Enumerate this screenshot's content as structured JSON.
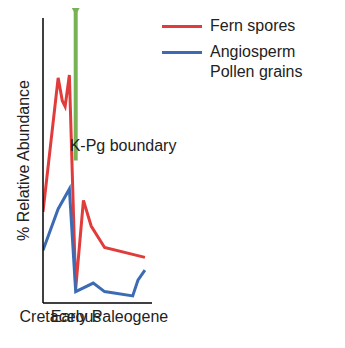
{
  "chart_data": {
    "type": "line",
    "y_label": "% Relative Abundance",
    "xlim": [
      0,
      100
    ],
    "ylim": [
      0,
      100
    ],
    "xticks": [
      {
        "value": 16,
        "label": "Cretaceous"
      },
      {
        "value": 61,
        "label": "Early Paleogene"
      }
    ],
    "yticks": [],
    "tick_labels": "x",
    "grid": false,
    "legend": "upper right",
    "annotations": [
      {
        "text": "K-Pg boundary",
        "x": 30,
        "color": "#77b255"
      }
    ],
    "series": [
      {
        "name": "Fern spores",
        "color": "#e03c3c",
        "x": [
          0,
          13.9,
          17.7,
          20.3,
          24.2,
          30,
          37.1,
          44.2,
          56.5,
          93.5
        ],
        "values": [
          32,
          79,
          71,
          69,
          80,
          5,
          36,
          27,
          19.5,
          16
        ]
      },
      {
        "name": "Angiosperm Pollen grains",
        "color": "#3c6bb4",
        "x": [
          0,
          13.9,
          24.2,
          30,
          46.1,
          56.5,
          82.3,
          87.1,
          93.5
        ],
        "values": [
          18.5,
          33,
          40,
          4,
          7,
          4,
          2.5,
          8,
          11.5
        ]
      }
    ]
  }
}
